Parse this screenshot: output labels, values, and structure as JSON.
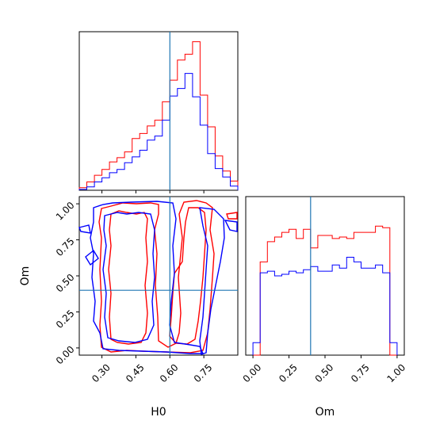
{
  "chart_data": {
    "type": "corner",
    "parameters": [
      "H0",
      "Om"
    ],
    "truth": {
      "H0": 0.6,
      "Om": 0.4
    },
    "truth_color": "#1f77b4",
    "series_colors": [
      "#ff0000",
      "#0000ff"
    ],
    "h0_range": [
      0.2,
      0.9
    ],
    "om_range": [
      -0.05,
      1.05
    ],
    "h0_ticks": [
      "0.30",
      "0.45",
      "0.60",
      "0.75"
    ],
    "om_ticks": [
      "0.00",
      "0.25",
      "0.50",
      "0.75",
      "1.00"
    ],
    "hist_h0": {
      "bin_edges": [
        0.2,
        0.2333,
        0.2667,
        0.3,
        0.3333,
        0.3667,
        0.4,
        0.4333,
        0.4667,
        0.5,
        0.5333,
        0.5667,
        0.6,
        0.6333,
        0.6667,
        0.7,
        0.7333,
        0.7667,
        0.8,
        0.8333,
        0.8667,
        0.9
      ],
      "series": [
        {
          "values": [
            0.3,
            1.0,
            1.8,
            2.5,
            3.4,
            3.9,
            4.6,
            6.2,
            6.8,
            7.7,
            8.4,
            10.6,
            13.2,
            15.6,
            16.3,
            17.8,
            11.4,
            7.6,
            4.1,
            2.3,
            1.1
          ]
        },
        {
          "values": [
            0.1,
            0.4,
            1.0,
            1.5,
            2.1,
            2.5,
            3.3,
            4.0,
            4.8,
            6.0,
            6.5,
            8.4,
            11.3,
            12.2,
            14.0,
            11.2,
            7.8,
            4.4,
            2.6,
            1.6,
            0.5
          ]
        }
      ]
    },
    "hist_om": {
      "bin_edges": [
        0.0,
        0.05,
        0.1,
        0.15,
        0.2,
        0.25,
        0.3,
        0.35,
        0.4,
        0.45,
        0.5,
        0.55,
        0.6,
        0.65,
        0.7,
        0.75,
        0.8,
        0.85,
        0.9,
        0.95,
        1.0
      ],
      "series": [
        {
          "values": [
            0.0,
            6.0,
            7.3,
            7.6,
            7.9,
            8.1,
            7.5,
            8.1,
            6.9,
            7.7,
            7.7,
            7.5,
            7.6,
            7.5,
            7.9,
            7.9,
            7.9,
            8.3,
            8.2,
            0.0
          ]
        },
        {
          "values": [
            0.8,
            5.3,
            5.4,
            5.1,
            5.2,
            5.4,
            5.3,
            5.5,
            5.7,
            5.4,
            5.4,
            5.8,
            5.6,
            6.3,
            6.0,
            5.6,
            5.6,
            5.8,
            5.3,
            0.8
          ]
        }
      ]
    }
  }
}
